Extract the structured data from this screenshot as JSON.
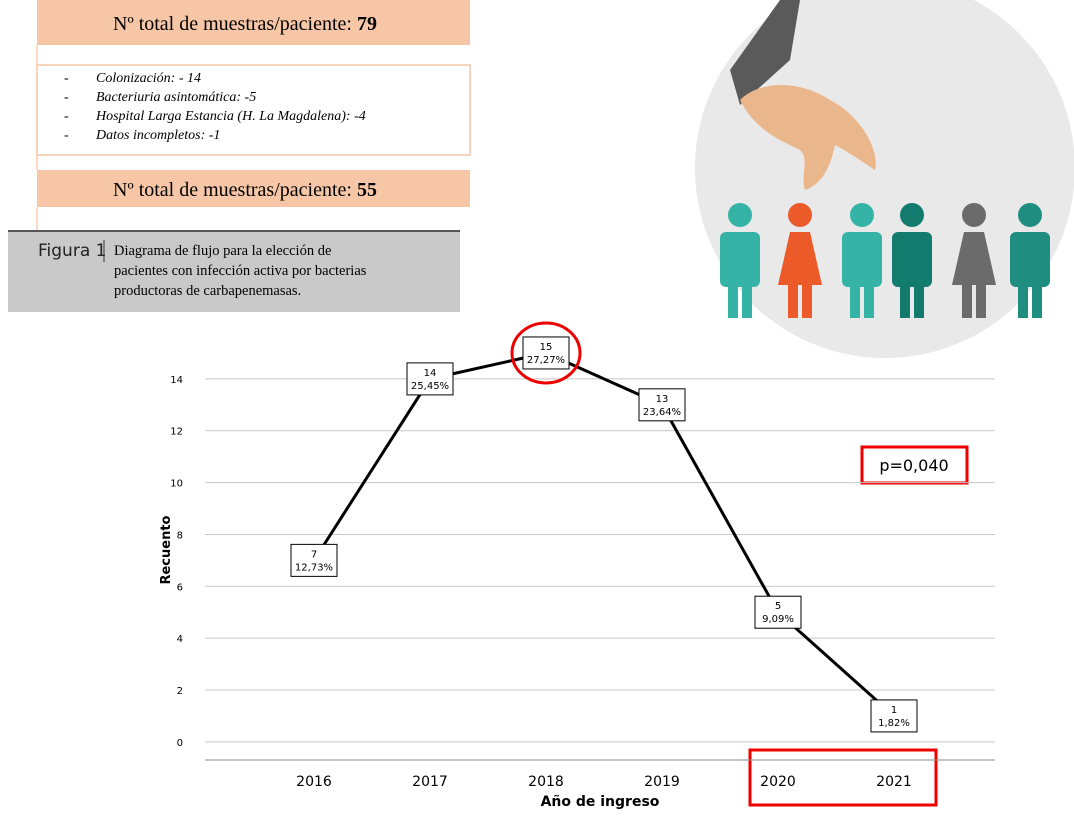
{
  "flow": {
    "total_initial": {
      "label": "Nº total de muestras/paciente:",
      "count": "79"
    },
    "exclusions": [
      "Colonización: - 14",
      "Bacteriuria asintomática: -5",
      "Hospital Larga Estancia (H. La Magdalena): -4",
      "Datos incompletos: -1"
    ],
    "total_final": {
      "label": "Nº total de muestras/paciente:",
      "count": "55"
    },
    "caption": {
      "figure": "Figura 1",
      "lines": [
        "Diagrama de flujo para la elección de",
        "pacientes con infección activa por bacterias",
        "productoras de carbapenemasas."
      ]
    }
  },
  "chart_data": {
    "type": "line",
    "categories": [
      "2016",
      "2017",
      "2018",
      "2019",
      "2020",
      "2021"
    ],
    "values": [
      7,
      14,
      15,
      13,
      5,
      1
    ],
    "percent_labels": [
      "12,73%",
      "25,45%",
      "27,27%",
      "23,64%",
      "9,09%",
      "1,82%"
    ],
    "color": "#000000",
    "xlabel": "Año de ingreso",
    "ylabel": "Recuento",
    "ylim": [
      -0.7,
      15.5
    ],
    "yticks": [
      0,
      2,
      4,
      6,
      8,
      10,
      12,
      14
    ],
    "grid": true,
    "annotation": "p=0,040"
  }
}
